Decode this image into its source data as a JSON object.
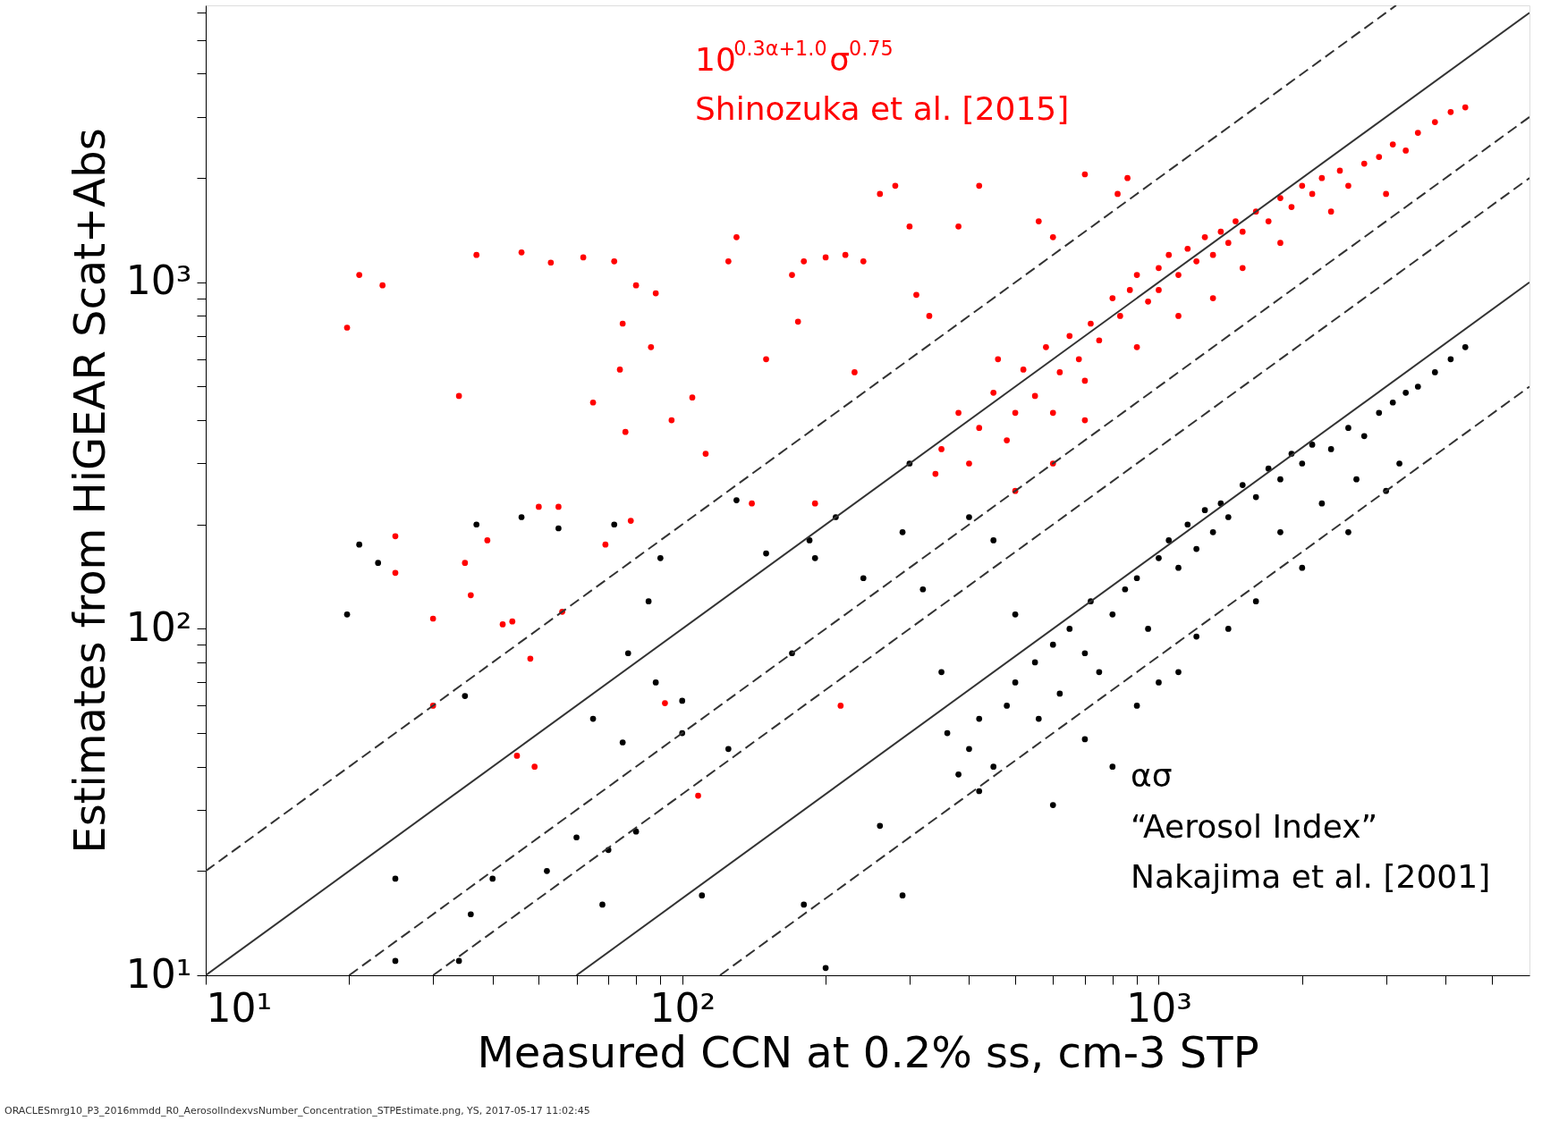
{
  "chart_data": {
    "type": "scatter",
    "xlabel": "Measured CCN at 0.2% ss, cm-3 STP",
    "ylabel": "Estimates from HiGEAR Scat+Abs",
    "log": "xy",
    "grid": false,
    "marker": "circle",
    "xlim": [
      10,
      6000
    ],
    "ylim": [
      10,
      6300
    ],
    "xticks": [
      {
        "value": 10,
        "label": "10¹"
      },
      {
        "value": 20,
        "label": null
      },
      {
        "value": 30,
        "label": null
      },
      {
        "value": 40,
        "label": null
      },
      {
        "value": 50,
        "label": null
      },
      {
        "value": 60,
        "label": null
      },
      {
        "value": 70,
        "label": null
      },
      {
        "value": 80,
        "label": null
      },
      {
        "value": 90,
        "label": null
      },
      {
        "value": 100,
        "label": "10²"
      },
      {
        "value": 200,
        "label": null
      },
      {
        "value": 300,
        "label": null
      },
      {
        "value": 400,
        "label": null
      },
      {
        "value": 500,
        "label": null
      },
      {
        "value": 600,
        "label": null
      },
      {
        "value": 700,
        "label": null
      },
      {
        "value": 800,
        "label": null
      },
      {
        "value": 900,
        "label": null
      },
      {
        "value": 1000,
        "label": "10³"
      },
      {
        "value": 2000,
        "label": null
      },
      {
        "value": 3000,
        "label": null
      },
      {
        "value": 4000,
        "label": null
      },
      {
        "value": 5000,
        "label": null
      }
    ],
    "yticks": [
      {
        "value": 10,
        "label": "10¹"
      },
      {
        "value": 20,
        "label": null
      },
      {
        "value": 30,
        "label": null
      },
      {
        "value": 40,
        "label": null
      },
      {
        "value": 50,
        "label": null
      },
      {
        "value": 60,
        "label": null
      },
      {
        "value": 70,
        "label": null
      },
      {
        "value": 80,
        "label": null
      },
      {
        "value": 90,
        "label": null
      },
      {
        "value": 100,
        "label": "10²"
      },
      {
        "value": 200,
        "label": null
      },
      {
        "value": 300,
        "label": null
      },
      {
        "value": 400,
        "label": null
      },
      {
        "value": 500,
        "label": null
      },
      {
        "value": 600,
        "label": null
      },
      {
        "value": 700,
        "label": null
      },
      {
        "value": 800,
        "label": null
      },
      {
        "value": 900,
        "label": null
      },
      {
        "value": 1000,
        "label": "10³"
      },
      {
        "value": 2000,
        "label": null
      },
      {
        "value": 3000,
        "label": null
      },
      {
        "value": 4000,
        "label": null
      },
      {
        "value": 5000,
        "label": null
      },
      {
        "value": 6000,
        "label": null
      }
    ],
    "annotations": [
      "10$^{0.3α+1.0}$σ$^{0.75}$",
      "Shinozuka et al. [2015]",
      "ασ",
      "“Aerosol Index”",
      "Nakajima et al. [2001]",
      "ORACLESmrg10_P3_2016mmdd_R0_AerosolIndexvsNumber_Concentration_STPEstimate.png, YS, 2017-05-17 11:02:45"
    ],
    "series": [
      {
        "color": "#ff0000",
        "x": [
          19.8,
          21,
          23.5,
          25,
          25,
          30,
          30,
          34,
          35,
          36,
          37,
          39,
          42,
          44,
          45,
          46,
          48,
          49,
          50,
          53,
          55,
          56,
          62,
          65,
          69,
          72,
          74,
          76,
          75,
          78,
          80,
          86,
          88,
          92,
          95,
          105,
          108,
          112,
          125,
          130,
          140,
          150,
          170,
          175,
          180,
          190,
          200,
          215,
          220,
          230,
          240,
          260,
          280,
          300,
          310,
          330,
          340,
          380,
          420,
          460,
          560,
          600,
          700,
          820,
          860,
          350,
          380,
          400,
          420,
          450,
          480,
          500,
          520,
          550,
          580,
          600,
          620,
          650,
          680,
          700,
          720,
          750,
          800,
          830,
          870,
          900,
          950,
          1000,
          1000,
          1050,
          1100,
          1150,
          1200,
          1250,
          1300,
          1350,
          1400,
          1450,
          1500,
          1600,
          1700,
          1800,
          1900,
          2000,
          2100,
          2200,
          2400,
          2500,
          2700,
          2900,
          3100,
          3300,
          3500,
          3800,
          4100,
          4400,
          3000,
          2300,
          1800,
          1500,
          1300,
          1100,
          900,
          700,
          600,
          500
        ],
        "values": [
          740,
          1050,
          980,
          185,
          145,
          107,
          60,
          470,
          155,
          125,
          1200,
          180,
          103,
          105,
          43,
          1220,
          82,
          40,
          225,
          1140,
          225,
          112,
          1180,
          450,
          175,
          1150,
          560,
          370,
          760,
          205,
          980,
          650,
          930,
          61,
          400,
          465,
          33,
          320,
          1150,
          1350,
          230,
          600,
          1050,
          770,
          1150,
          230,
          1180,
          60,
          1200,
          550,
          1150,
          1800,
          1900,
          1450,
          920,
          800,
          280,
          1450,
          1900,
          600,
          1500,
          1350,
          2050,
          1800,
          2000,
          330,
          420,
          300,
          380,
          480,
          350,
          420,
          560,
          470,
          650,
          420,
          550,
          700,
          600,
          520,
          760,
          680,
          900,
          800,
          950,
          1050,
          880,
          1100,
          950,
          1200,
          1050,
          1250,
          1150,
          1350,
          1200,
          1400,
          1300,
          1500,
          1400,
          1600,
          1500,
          1750,
          1650,
          1900,
          1800,
          2000,
          2100,
          1900,
          2200,
          2300,
          2500,
          2400,
          2700,
          2900,
          3100,
          3200,
          1800,
          1600,
          1300,
          1100,
          900,
          800,
          650,
          400,
          300,
          250
        ]
      },
      {
        "color": "#000000",
        "x": [
          19.8,
          21,
          23,
          25,
          25,
          34,
          36,
          37,
          35,
          40,
          46,
          52,
          55,
          60,
          65,
          68,
          70,
          72,
          75,
          77,
          80,
          85,
          88,
          90,
          100,
          100,
          110,
          125,
          130,
          150,
          170,
          180,
          185,
          190,
          200,
          210,
          240,
          260,
          290,
          290,
          300,
          320,
          350,
          400,
          420,
          450,
          500,
          560,
          600,
          360,
          380,
          400,
          420,
          450,
          480,
          500,
          550,
          600,
          620,
          650,
          700,
          720,
          750,
          800,
          850,
          900,
          950,
          1000,
          1000,
          1050,
          1100,
          1150,
          1200,
          1250,
          1300,
          1350,
          1400,
          1500,
          1600,
          1700,
          1800,
          1900,
          2000,
          2100,
          2300,
          2500,
          2700,
          2900,
          3100,
          3300,
          3500,
          3800,
          4100,
          4400,
          3200,
          2600,
          2200,
          1800,
          1400,
          1200,
          900,
          700,
          800,
          1100,
          1600,
          2000,
          2500,
          3000
        ],
        "values": [
          110,
          175,
          155,
          19,
          11,
          11,
          15,
          200,
          64,
          19,
          210,
          20,
          195,
          25,
          55,
          16,
          23,
          200,
          47,
          85,
          26,
          120,
          70,
          160,
          62,
          50,
          17,
          45,
          235,
          165,
          85,
          16,
          180,
          160,
          10.5,
          210,
          140,
          27,
          17,
          190,
          300,
          130,
          75,
          210,
          34,
          180,
          110,
          55,
          31,
          50,
          38,
          45,
          55,
          40,
          60,
          70,
          80,
          90,
          65,
          100,
          85,
          120,
          75,
          110,
          130,
          140,
          100,
          160,
          70,
          180,
          150,
          200,
          170,
          220,
          190,
          230,
          210,
          260,
          240,
          290,
          270,
          320,
          300,
          340,
          330,
          380,
          360,
          420,
          450,
          480,
          500,
          550,
          600,
          650,
          300,
          270,
          230,
          190,
          100,
          95,
          60,
          48,
          40,
          75,
          120,
          150,
          190,
          250
        ]
      },
      {
        "type": "line",
        "marker": "none",
        "line_style": "dashed",
        "color": "#333333",
        "x": [
          10,
          3150
        ],
        "values": [
          20,
          6300
        ]
      },
      {
        "type": "line",
        "marker": "none",
        "line_style": "solid",
        "color": "#333333",
        "x": [
          10,
          6000
        ],
        "values": [
          10,
          6000
        ]
      },
      {
        "type": "line",
        "marker": "none",
        "line_style": "dashed",
        "color": "#333333",
        "x": [
          20,
          6000
        ],
        "values": [
          10,
          3000
        ]
      },
      {
        "type": "line",
        "marker": "none",
        "line_style": "dashed",
        "color": "#333333",
        "x": [
          30,
          6000
        ],
        "values": [
          10,
          2000
        ]
      },
      {
        "type": "line",
        "marker": "none",
        "line_style": "solid",
        "color": "#333333",
        "x": [
          60,
          6000
        ],
        "values": [
          10,
          1000
        ]
      },
      {
        "type": "line",
        "marker": "none",
        "line_style": "dashed",
        "color": "#333333",
        "x": [
          120,
          6000
        ],
        "values": [
          10,
          500
        ]
      }
    ]
  }
}
